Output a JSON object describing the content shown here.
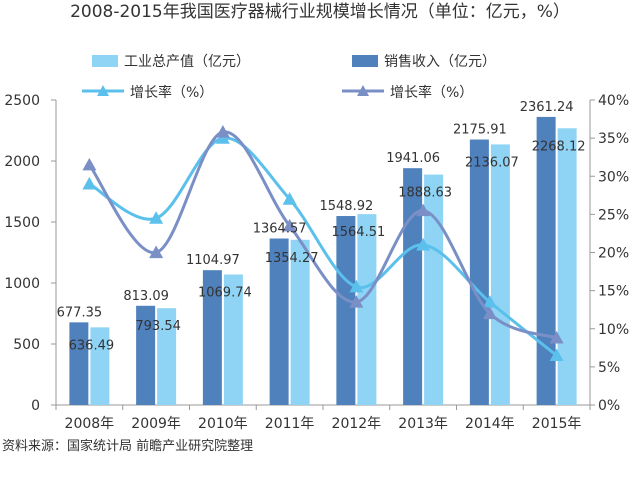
{
  "chart_data": {
    "type": "bar",
    "title": "2008-2015年我国医疗器械行业规模增长情况（单位：亿元，%）",
    "categories": [
      "2008年",
      "2009年",
      "2010年",
      "2011年",
      "2012年",
      "2013年",
      "2014年",
      "2015年"
    ],
    "series": [
      {
        "name": "销售收入（亿元）",
        "type": "bar",
        "axis": "left",
        "color": "#4f81bd",
        "values": [
          677.35,
          813.09,
          1104.97,
          1364.57,
          1548.92,
          1941.06,
          2175.91,
          2361.24
        ],
        "labels": [
          "677.35",
          "813.09",
          "1104.97",
          "1364.57",
          "1548.92",
          "1941.06",
          "2175.91",
          "2361.24"
        ]
      },
      {
        "name": "工业总产值（亿元）",
        "type": "bar",
        "axis": "left",
        "color": "#8fd4f5",
        "values": [
          636.49,
          793.54,
          1069.74,
          1354.27,
          1564.51,
          1888.63,
          2136.07,
          2268.12
        ],
        "labels": [
          "636.49",
          "793.54",
          "1069.74",
          "1354.27",
          "1564.51",
          "1888.63",
          "2136.07",
          "2268.12"
        ]
      },
      {
        "name": "增长率（%）",
        "type": "line",
        "axis": "right",
        "color": "#5bc0eb",
        "values": [
          29.0,
          24.5,
          35.0,
          27.0,
          15.5,
          21.0,
          13.5,
          6.5
        ]
      },
      {
        "name": "增长率（%）",
        "type": "line",
        "axis": "right",
        "color": "#7b8fc7",
        "values": [
          31.5,
          20.0,
          35.8,
          23.5,
          13.5,
          25.5,
          12.0,
          8.8
        ]
      }
    ],
    "y_left": {
      "ylim": [
        0,
        2500
      ],
      "ticks": [
        "0",
        "500",
        "1000",
        "1500",
        "2000",
        "2500"
      ]
    },
    "y_right": {
      "ylim": [
        0,
        40
      ],
      "ticks": [
        "0%",
        "5%",
        "10%",
        "15%",
        "20%",
        "25%",
        "30%",
        "35%",
        "40%"
      ]
    },
    "legend": {
      "position": "top"
    },
    "grid": false
  },
  "legend_items": {
    "output": "工业总产值（亿元）",
    "sales": "销售收入（亿元）",
    "growth_output": "增长率（%）",
    "growth_sales": "增长率（%）"
  },
  "source": "资料来源：国家统计局 前瞻产业研究院整理"
}
